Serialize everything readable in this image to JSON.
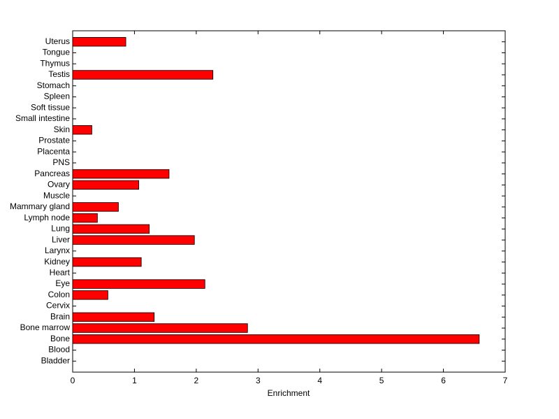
{
  "chart_data": {
    "type": "bar",
    "orientation": "horizontal",
    "xlabel": "Enrichment",
    "categories": [
      "Bladder",
      "Blood",
      "Bone",
      "Bone marrow",
      "Brain",
      "Cervix",
      "Colon",
      "Eye",
      "Heart",
      "Kidney",
      "Larynx",
      "Liver",
      "Lung",
      "Lymph node",
      "Mammary gland",
      "Muscle",
      "Ovary",
      "Pancreas",
      "PNS",
      "Placenta",
      "Prostate",
      "Skin",
      "Small intestine",
      "Soft tissue",
      "Spleen",
      "Stomach",
      "Testis",
      "Thymus",
      "Tongue",
      "Uterus"
    ],
    "values": [
      0,
      0,
      6.58,
      2.83,
      1.32,
      0,
      0.57,
      2.14,
      0,
      1.11,
      0,
      1.97,
      1.24,
      0.4,
      0.74,
      0,
      1.07,
      1.56,
      0,
      0,
      0,
      0.31,
      0,
      0,
      0,
      0,
      2.27,
      0,
      0,
      0.86
    ],
    "color": "#ff0000",
    "xlim": [
      0,
      7
    ],
    "xticks": [
      0,
      1,
      2,
      3,
      4,
      5,
      6,
      7
    ],
    "grid": false
  }
}
